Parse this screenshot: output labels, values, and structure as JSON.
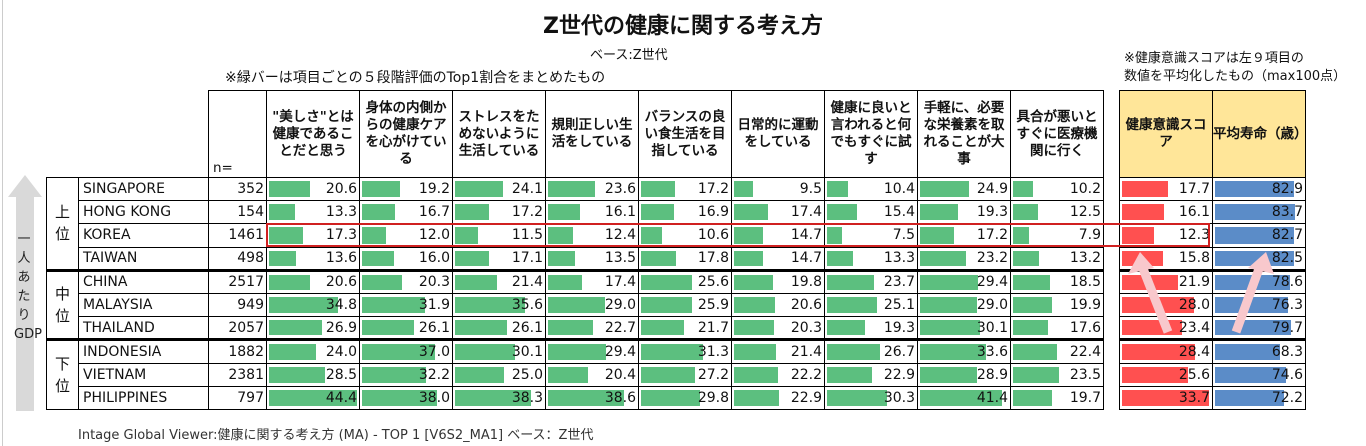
{
  "title": "Z世代の健康に関する考え方",
  "base": "ベース:Z世代",
  "note": "※緑バーは項目ごとの５段階評価のTop1割合をまとめたもの",
  "note2_line1": "※健康意識スコアは左９項目の",
  "note2_line2": "数値を平均化したもの（max100点）",
  "axis_label": "一人あたりGDP",
  "n_header": "n=",
  "columns": [
    "\"美しさ\"とは健康であることだと思う",
    "身体の内側からの健康ケアを心がけている",
    "ストレスをためないように生活している",
    "規則正しい生活をしている",
    "バランスの良い食生活を目指している",
    "日常的に運動をしている",
    "健康に良いと言われると何でもすぐに試す",
    "手軽に、必要な栄養素を取れることが大事",
    "具合が悪いとすぐに医療機関に行く"
  ],
  "score_header": "健康意識スコア",
  "life_header": "平均寿命（歳）",
  "groups": [
    {
      "label": "上位",
      "rows": 4
    },
    {
      "label": "中位",
      "rows": 3
    },
    {
      "label": "下位",
      "rows": 3
    }
  ],
  "rows": [
    {
      "country": "SINGAPORE",
      "n": "352",
      "values": [
        "20.6",
        "19.2",
        "24.1",
        "23.6",
        "17.2",
        "9.5",
        "10.4",
        "24.9",
        "10.2"
      ],
      "score": "17.7",
      "life": "82.9"
    },
    {
      "country": "HONG KONG",
      "n": "154",
      "values": [
        "13.3",
        "16.7",
        "17.2",
        "16.1",
        "16.9",
        "17.4",
        "15.4",
        "19.3",
        "12.5"
      ],
      "score": "16.1",
      "life": "83.7"
    },
    {
      "country": "KOREA",
      "n": "1461",
      "values": [
        "17.3",
        "12.0",
        "11.5",
        "12.4",
        "10.6",
        "14.7",
        "7.5",
        "17.2",
        "7.9"
      ],
      "score": "12.3",
      "life": "82.7"
    },
    {
      "country": "TAIWAN",
      "n": "498",
      "values": [
        "13.6",
        "16.0",
        "17.1",
        "13.5",
        "17.8",
        "14.7",
        "13.3",
        "23.2",
        "13.2"
      ],
      "score": "15.8",
      "life": "82.5"
    },
    {
      "country": "CHINA",
      "n": "2517",
      "values": [
        "20.6",
        "20.3",
        "21.4",
        "17.4",
        "25.6",
        "19.8",
        "23.7",
        "29.4",
        "18.5"
      ],
      "score": "21.9",
      "life": "78.6"
    },
    {
      "country": "MALAYSIA",
      "n": "949",
      "values": [
        "34.8",
        "31.9",
        "35.6",
        "29.0",
        "25.9",
        "20.6",
        "25.1",
        "29.0",
        "19.9"
      ],
      "score": "28.0",
      "life": "76.3"
    },
    {
      "country": "THAILAND",
      "n": "2057",
      "values": [
        "26.9",
        "26.1",
        "26.1",
        "22.7",
        "21.7",
        "20.3",
        "19.3",
        "30.1",
        "17.6"
      ],
      "score": "23.4",
      "life": "79.7"
    },
    {
      "country": "INDONESIA",
      "n": "1882",
      "values": [
        "24.0",
        "37.0",
        "30.1",
        "29.4",
        "31.3",
        "21.4",
        "26.7",
        "33.6",
        "22.4"
      ],
      "score": "28.4",
      "life": "68.3"
    },
    {
      "country": "VIETNAM",
      "n": "2381",
      "values": [
        "28.5",
        "32.2",
        "25.0",
        "20.4",
        "27.2",
        "22.2",
        "22.9",
        "28.9",
        "23.5"
      ],
      "score": "25.6",
      "life": "74.6"
    },
    {
      "country": "PHILIPPINES",
      "n": "797",
      "values": [
        "44.4",
        "38.0",
        "38.3",
        "38.6",
        "29.8",
        "22.9",
        "30.3",
        "41.4",
        "19.7"
      ],
      "score": "33.7",
      "life": "72.2"
    }
  ],
  "highlight_country": "KOREA",
  "colors": {
    "green": "#5cbf7f",
    "red": "#ff5050",
    "blue": "#5b8cc8",
    "header_yellow": "#ffe699",
    "highlight": "#d02020",
    "arrow": "#f8c8cc"
  },
  "footer": "Intage Global Viewer:健康に関する考え方 (MA) - TOP 1 [V6S2_MA1]  ベース：Z世代"
}
